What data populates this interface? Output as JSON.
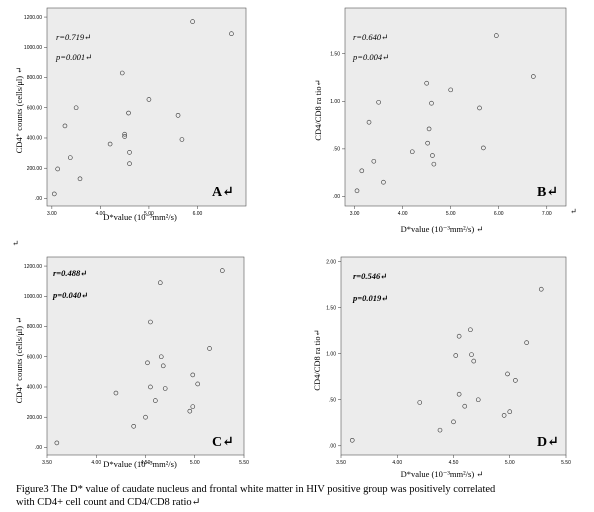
{
  "figure": {
    "caption_line1": "Figure3    The D* value of caudate nucleus and frontal white matter in HIV positive group was positively correlated",
    "caption_line2": "with CD4+ cell count and CD4/CD8 ratio↵"
  },
  "chart_data": [
    {
      "type": "scatter",
      "panel_letter": "A↵",
      "xlabel": "D*value (10⁻³mm²/s)",
      "ylabel": "CD4⁺ counts  (cells/μl) ↵",
      "stat_r": "r=0.719↵",
      "stat_p": "p=0.001↵",
      "stats_bold": false,
      "xlim": [
        2.9,
        7.0
      ],
      "ylim": [
        -50,
        1260
      ],
      "x_ticks": [
        3.0,
        4.0,
        5.0,
        6.0
      ],
      "x_tick_labels": [
        "3.00",
        "4.00",
        "5.00",
        "6.00"
      ],
      "y_ticks": [
        0,
        200,
        400,
        600,
        800,
        1000,
        1200
      ],
      "y_tick_labels": [
        ".00",
        "200.00",
        "400.00",
        "600.00",
        "800.00",
        "1000.00",
        "1200.00"
      ],
      "points": [
        [
          3.05,
          30
        ],
        [
          3.12,
          195
        ],
        [
          3.27,
          480
        ],
        [
          3.38,
          270
        ],
        [
          3.5,
          600
        ],
        [
          3.58,
          130
        ],
        [
          4.2,
          360
        ],
        [
          4.45,
          830
        ],
        [
          4.5,
          410
        ],
        [
          4.5,
          425
        ],
        [
          4.58,
          565
        ],
        [
          4.6,
          305
        ],
        [
          4.6,
          230
        ],
        [
          5.0,
          655
        ],
        [
          5.6,
          550
        ],
        [
          5.68,
          390
        ],
        [
          5.9,
          1170
        ],
        [
          6.7,
          1090
        ]
      ]
    },
    {
      "type": "scatter",
      "panel_letter": "B↵",
      "xlabel": "D*value (10⁻³mm²/s) ↵",
      "ylabel": "CD4/CD8 ra tio↵",
      "stat_r": "r=0.640↵",
      "stat_p": "p=0.004↵",
      "stats_bold": false,
      "xlim": [
        2.8,
        7.4
      ],
      "ylim": [
        -0.1,
        1.98
      ],
      "x_ticks": [
        3.0,
        4.0,
        5.0,
        6.0,
        7.0
      ],
      "x_tick_labels": [
        "3.00",
        "4.00",
        "5.00",
        "6.00",
        "7.00"
      ],
      "y_ticks": [
        0,
        0.5,
        1.0,
        1.5
      ],
      "y_tick_labels": [
        ".00",
        ".50",
        "1.00",
        "1.50"
      ],
      "points": [
        [
          3.05,
          0.06
        ],
        [
          3.15,
          0.27
        ],
        [
          3.3,
          0.78
        ],
        [
          3.4,
          0.37
        ],
        [
          3.5,
          0.99
        ],
        [
          3.6,
          0.15
        ],
        [
          4.2,
          0.47
        ],
        [
          4.5,
          1.19
        ],
        [
          4.52,
          0.56
        ],
        [
          4.55,
          0.71
        ],
        [
          4.6,
          0.98
        ],
        [
          4.62,
          0.43
        ],
        [
          4.65,
          0.34
        ],
        [
          5.0,
          1.12
        ],
        [
          5.6,
          0.93
        ],
        [
          5.68,
          0.51
        ],
        [
          5.95,
          1.69
        ],
        [
          6.72,
          1.26
        ]
      ]
    },
    {
      "type": "scatter",
      "panel_letter": "C↵",
      "xlabel": "D*value (10⁻³mm²/s)",
      "ylabel": "CD4⁺ counts  (cells/μl) ↵",
      "stat_r": "r=0.488↵",
      "stat_p": "p=0.040↵",
      "stats_bold": true,
      "xlim": [
        3.5,
        5.5
      ],
      "ylim": [
        -50,
        1260
      ],
      "x_ticks": [
        3.5,
        4.0,
        4.5,
        5.0,
        5.5
      ],
      "x_tick_labels": [
        "3.50",
        "4.00",
        "4.50",
        "5.00",
        "5.50"
      ],
      "y_ticks": [
        0,
        200,
        400,
        600,
        800,
        1000,
        1200
      ],
      "y_tick_labels": [
        ".00",
        "200.00",
        "400.00",
        "600.00",
        "800.00",
        "1000.00",
        "1200.00"
      ],
      "points": [
        [
          3.6,
          30
        ],
        [
          4.2,
          360
        ],
        [
          4.38,
          140
        ],
        [
          4.5,
          200
        ],
        [
          4.52,
          560
        ],
        [
          4.55,
          830
        ],
        [
          4.55,
          400
        ],
        [
          4.6,
          310
        ],
        [
          4.65,
          1090
        ],
        [
          4.66,
          600
        ],
        [
          4.68,
          540
        ],
        [
          4.7,
          390
        ],
        [
          4.95,
          240
        ],
        [
          4.98,
          480
        ],
        [
          4.98,
          270
        ],
        [
          5.03,
          420
        ],
        [
          5.15,
          655
        ],
        [
          5.28,
          1170
        ]
      ]
    },
    {
      "type": "scatter",
      "panel_letter": "D↵",
      "xlabel": "D*value (10⁻³mm²/s) ↵",
      "ylabel": "CD4/CD8 ra tio↵",
      "stat_r": "r=0.546↵",
      "stat_p": "p=0.019↵",
      "stats_bold": true,
      "xlim": [
        3.5,
        5.5
      ],
      "ylim": [
        -0.1,
        2.05
      ],
      "x_ticks": [
        3.5,
        4.0,
        4.5,
        5.0,
        5.5
      ],
      "x_tick_labels": [
        "3.50",
        "4.00",
        "4.50",
        "5.00",
        "5.50"
      ],
      "y_ticks": [
        0,
        0.5,
        1.0,
        1.5,
        2.0
      ],
      "y_tick_labels": [
        ".00",
        ".50",
        "1.00",
        "1.50",
        "2.00"
      ],
      "points": [
        [
          3.6,
          0.06
        ],
        [
          4.2,
          0.47
        ],
        [
          4.38,
          0.17
        ],
        [
          4.5,
          0.26
        ],
        [
          4.52,
          0.98
        ],
        [
          4.55,
          1.19
        ],
        [
          4.55,
          0.56
        ],
        [
          4.6,
          0.43
        ],
        [
          4.65,
          1.26
        ],
        [
          4.66,
          0.99
        ],
        [
          4.68,
          0.92
        ],
        [
          4.72,
          0.5
        ],
        [
          4.95,
          0.33
        ],
        [
          4.98,
          0.78
        ],
        [
          5.0,
          0.37
        ],
        [
          5.05,
          0.71
        ],
        [
          5.15,
          1.12
        ],
        [
          5.28,
          1.7
        ]
      ]
    }
  ]
}
